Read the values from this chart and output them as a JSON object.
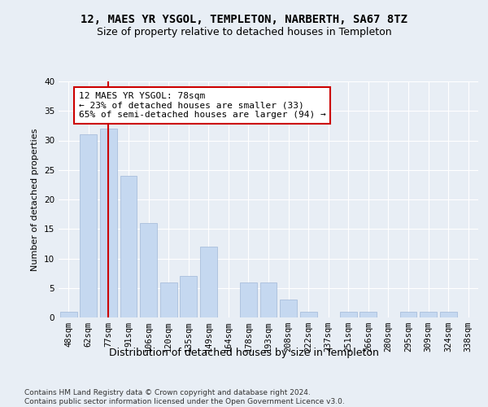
{
  "title": "12, MAES YR YSGOL, TEMPLETON, NARBERTH, SA67 8TZ",
  "subtitle": "Size of property relative to detached houses in Templeton",
  "xlabel": "Distribution of detached houses by size in Templeton",
  "ylabel": "Number of detached properties",
  "categories": [
    "48sqm",
    "62sqm",
    "77sqm",
    "91sqm",
    "106sqm",
    "120sqm",
    "135sqm",
    "149sqm",
    "164sqm",
    "178sqm",
    "193sqm",
    "208sqm",
    "222sqm",
    "237sqm",
    "251sqm",
    "266sqm",
    "280sqm",
    "295sqm",
    "309sqm",
    "324sqm",
    "338sqm"
  ],
  "values": [
    1,
    31,
    32,
    24,
    16,
    6,
    7,
    12,
    0,
    6,
    6,
    3,
    1,
    0,
    1,
    1,
    0,
    1,
    1,
    1,
    0
  ],
  "bar_color": "#c5d8f0",
  "bar_edge_color": "#a0b8d8",
  "vline_x_index": 2,
  "vline_color": "#cc0000",
  "annotation_line1": "12 MAES YR YSGOL: 78sqm",
  "annotation_line2": "← 23% of detached houses are smaller (33)",
  "annotation_line3": "65% of semi-detached houses are larger (94) →",
  "annotation_box_color": "#ffffff",
  "annotation_box_edge": "#cc0000",
  "ylim": [
    0,
    40
  ],
  "yticks": [
    0,
    5,
    10,
    15,
    20,
    25,
    30,
    35,
    40
  ],
  "background_color": "#e8eef5",
  "footer_line1": "Contains HM Land Registry data © Crown copyright and database right 2024.",
  "footer_line2": "Contains public sector information licensed under the Open Government Licence v3.0.",
  "title_fontsize": 10,
  "subtitle_fontsize": 9,
  "xlabel_fontsize": 9,
  "ylabel_fontsize": 8,
  "tick_fontsize": 7.5,
  "annotation_fontsize": 8,
  "footer_fontsize": 6.5
}
